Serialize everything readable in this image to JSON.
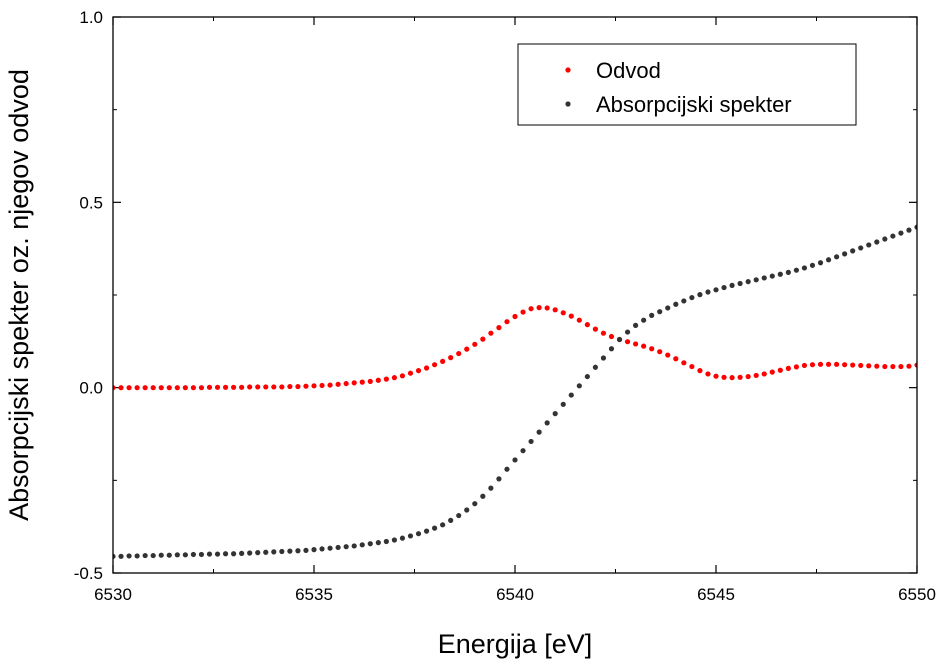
{
  "chart_data": {
    "type": "scatter",
    "title": "",
    "xlabel": "Energija [eV]",
    "ylabel": "Absorpcijski spekter oz. njegov odvod",
    "xlim": [
      6530,
      6550
    ],
    "ylim": [
      -0.5,
      1.0
    ],
    "xticks": [
      6530,
      6535,
      6540,
      6545,
      6550
    ],
    "xtick_labels": [
      "6530",
      "6535",
      "6540",
      "6545",
      "6550"
    ],
    "yticks": [
      -0.5,
      0.0,
      0.5,
      1.0
    ],
    "ytick_labels": [
      "-0.5",
      "0.0",
      "0.5",
      "1.0"
    ],
    "grid": false,
    "legend_position": "top-right",
    "x_start": 6530,
    "x_step": 0.2,
    "series": [
      {
        "name": "Odvod",
        "color": "#ff0000",
        "values": [
          0.0,
          0.0,
          0.0,
          0.0,
          0.0,
          0.0,
          0.0,
          0.0,
          0.0,
          0.0,
          0.0,
          0.0,
          0.001,
          0.001,
          0.001,
          0.001,
          0.001,
          0.002,
          0.002,
          0.002,
          0.002,
          0.002,
          0.003,
          0.003,
          0.004,
          0.005,
          0.006,
          0.007,
          0.009,
          0.011,
          0.013,
          0.015,
          0.017,
          0.02,
          0.023,
          0.027,
          0.032,
          0.039,
          0.046,
          0.053,
          0.062,
          0.071,
          0.081,
          0.092,
          0.104,
          0.117,
          0.131,
          0.147,
          0.162,
          0.178,
          0.192,
          0.204,
          0.213,
          0.216,
          0.215,
          0.21,
          0.202,
          0.193,
          0.182,
          0.17,
          0.158,
          0.147,
          0.138,
          0.13,
          0.124,
          0.118,
          0.112,
          0.105,
          0.097,
          0.088,
          0.078,
          0.067,
          0.057,
          0.046,
          0.037,
          0.031,
          0.028,
          0.027,
          0.028,
          0.03,
          0.033,
          0.037,
          0.042,
          0.047,
          0.052,
          0.056,
          0.06,
          0.062,
          0.063,
          0.063,
          0.063,
          0.062,
          0.061,
          0.06,
          0.059,
          0.058,
          0.057,
          0.057,
          0.057,
          0.058,
          0.061,
          0.064,
          0.068,
          0.072,
          0.076,
          0.08,
          0.085,
          0.09,
          0.095,
          0.1,
          0.105,
          0.109,
          0.112,
          0.114,
          0.115,
          0.117,
          0.119,
          0.121,
          0.122,
          0.123,
          0.124,
          0.124,
          0.123,
          0.122,
          0.121,
          0.12,
          0.119,
          0.118,
          0.117,
          0.116,
          0.115
        ]
      },
      {
        "name": "Absorpcijski spekter",
        "color": "#333333",
        "values": [
          -0.455,
          -0.455,
          -0.454,
          -0.454,
          -0.453,
          -0.453,
          -0.452,
          -0.452,
          -0.451,
          -0.451,
          -0.45,
          -0.45,
          -0.449,
          -0.449,
          -0.448,
          -0.448,
          -0.447,
          -0.446,
          -0.445,
          -0.444,
          -0.443,
          -0.442,
          -0.441,
          -0.44,
          -0.439,
          -0.437,
          -0.435,
          -0.433,
          -0.431,
          -0.429,
          -0.427,
          -0.424,
          -0.421,
          -0.418,
          -0.415,
          -0.411,
          -0.406,
          -0.4,
          -0.394,
          -0.387,
          -0.379,
          -0.37,
          -0.358,
          -0.345,
          -0.33,
          -0.313,
          -0.293,
          -0.271,
          -0.246,
          -0.22,
          -0.195,
          -0.17,
          -0.145,
          -0.12,
          -0.095,
          -0.07,
          -0.045,
          -0.02,
          0.005,
          0.03,
          0.055,
          0.08,
          0.105,
          0.13,
          0.15,
          0.168,
          0.182,
          0.195,
          0.205,
          0.215,
          0.225,
          0.234,
          0.243,
          0.251,
          0.258,
          0.264,
          0.27,
          0.276,
          0.281,
          0.286,
          0.291,
          0.296,
          0.301,
          0.306,
          0.311,
          0.317,
          0.323,
          0.33,
          0.337,
          0.345,
          0.353,
          0.361,
          0.369,
          0.377,
          0.385,
          0.393,
          0.401,
          0.409,
          0.417,
          0.425,
          0.433,
          0.441,
          0.449,
          0.457,
          0.465,
          0.473,
          0.481,
          0.49,
          0.499,
          0.508,
          0.518,
          0.528,
          0.539,
          0.551,
          0.564,
          0.578,
          0.594,
          0.61,
          0.628,
          0.646,
          0.664,
          0.682,
          0.7,
          0.718,
          0.736,
          0.752,
          0.766,
          0.778,
          0.788,
          0.796,
          0.803
        ]
      }
    ]
  }
}
